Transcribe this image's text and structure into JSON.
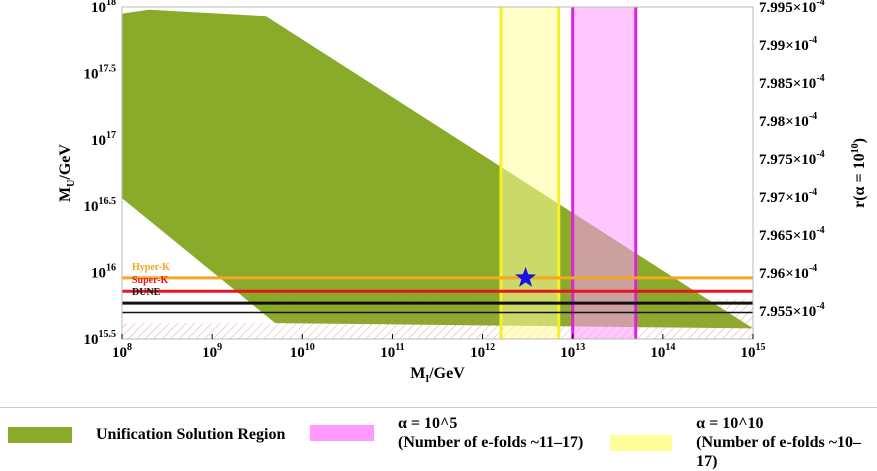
{
  "chart_data": {
    "type": "area",
    "x_scale": "log",
    "xlabel": "M_I/GeV",
    "ylabel": "M_U/GeV",
    "y2label": "r(α = 10^10)",
    "xlim": [
      100000000.0,
      1000000000000000.0
    ],
    "ylim_log10": [
      15.5,
      18.0
    ],
    "x_ticks": [
      "10^8",
      "10^9",
      "10^10",
      "10^11",
      "10^12",
      "10^13",
      "10^14",
      "10^15"
    ],
    "y_ticks": [
      "10^15.5",
      "10^16",
      "10^16.5",
      "10^17",
      "10^17.5",
      "10^18"
    ],
    "y2_ticks": [
      "7.955×10^-4",
      "7.96×10^-4",
      "7.965×10^-4",
      "7.97×10^-4",
      "7.975×10^-4",
      "7.98×10^-4",
      "7.985×10^-4",
      "7.99×10^-4",
      "7.995×10^-4"
    ],
    "unification_region": {
      "name": "Unification Solution Region",
      "color": "#8aab2a",
      "boundary_log10": [
        [
          8.0,
          17.95
        ],
        [
          8.3,
          17.98
        ],
        [
          9.6,
          17.93
        ],
        [
          15.0,
          15.58
        ],
        [
          9.7,
          15.62
        ],
        [
          8.0,
          16.56
        ]
      ]
    },
    "vertical_bands": [
      {
        "name": "α = 10^5 (Number of e-folds ~11–17)",
        "x_range": [
          10000000000000.0,
          50000000000000.0
        ],
        "color": "#ff99ff",
        "edge_color": "#dd22dd"
      },
      {
        "name": "α = 10^10 (Number of e-folds ~10–17)",
        "x_range": [
          1600000000000.0,
          7000000000000.0
        ],
        "color": "#ffff99",
        "edge_color": "#f2f226"
      }
    ],
    "horizontal_lines": [
      {
        "label": "Hyper-K",
        "y_log10": 15.96,
        "color": "#f5a623"
      },
      {
        "label": "Super-K",
        "y_log10": 15.86,
        "color": "#e8141e"
      },
      {
        "label": "DUNE",
        "y_log10": 15.77,
        "color": "#111111"
      }
    ],
    "marker": {
      "shape": "star",
      "x": 3000000000000.0,
      "y_log10": 15.96,
      "color": "#1414e6"
    },
    "grid": false,
    "legend_position": "bottom"
  },
  "legend": {
    "items": [
      {
        "label_lines": [
          "Unification Solution Region"
        ],
        "color": "#8aab2a"
      },
      {
        "label_lines": [
          "α = 10^5",
          "(Number of e-folds ~11–17)"
        ],
        "color": "#ff99ff"
      },
      {
        "label_lines": [
          "α = 10^10",
          "(Number of e-folds ~10–17)"
        ],
        "color": "#ffff99"
      }
    ]
  }
}
